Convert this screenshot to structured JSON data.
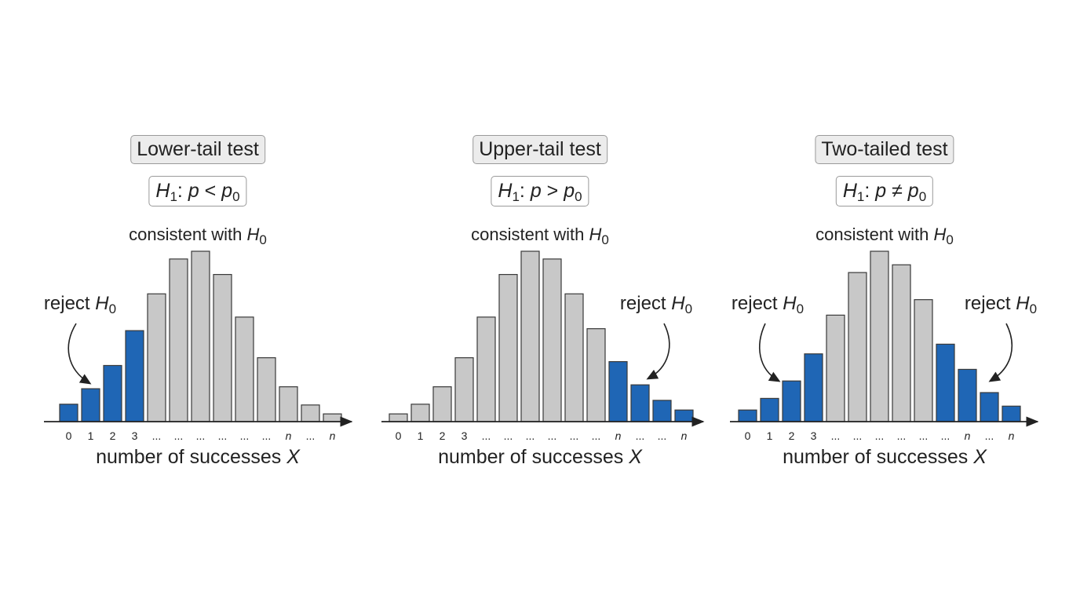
{
  "colors": {
    "reject": "#1f66b5",
    "accept": "#c8c8c8",
    "bar_stroke": "#3a3a3a",
    "axis": "#222222"
  },
  "chart_data": [
    {
      "type": "bar",
      "title": "Lower-tail test",
      "hypothesis": {
        "lhs": "H",
        "lhs_sub": "1",
        "colon": ":",
        "var": "p",
        "op": "<",
        "rhs": "p",
        "rhs_sub": "0"
      },
      "annotation": {
        "text": "consistent with",
        "sym": "H",
        "sub": "0"
      },
      "reject_labels": [
        {
          "text": "reject",
          "sym": "H",
          "sub": "0"
        }
      ],
      "xlabel": {
        "text": "number of successes",
        "sym": "X"
      },
      "tick_labels": [
        "0",
        "1",
        "2",
        "3",
        "...",
        "...",
        "...",
        "...",
        "...",
        "...",
        "n",
        "...",
        "n"
      ],
      "values": [
        0.045,
        0.085,
        0.145,
        0.235,
        0.33,
        0.42,
        0.44,
        0.38,
        0.27,
        0.165,
        0.09,
        0.043,
        0.02
      ],
      "reject": [
        true,
        true,
        true,
        true,
        false,
        false,
        false,
        false,
        false,
        false,
        false,
        false,
        false
      ]
    },
    {
      "type": "bar",
      "title": "Upper-tail test",
      "hypothesis": {
        "lhs": "H",
        "lhs_sub": "1",
        "colon": ":",
        "var": "p",
        "op": ">",
        "rhs": "p",
        "rhs_sub": "0"
      },
      "annotation": {
        "text": "consistent with",
        "sym": "H",
        "sub": "0"
      },
      "reject_labels": [
        {
          "text": "reject",
          "sym": "H",
          "sub": "0"
        }
      ],
      "xlabel": {
        "text": "number of successes",
        "sym": "X"
      },
      "tick_labels": [
        "0",
        "1",
        "2",
        "3",
        "...",
        "...",
        "...",
        "...",
        "...",
        "...",
        "n",
        "...",
        "...",
        "n"
      ],
      "values": [
        0.02,
        0.045,
        0.09,
        0.165,
        0.27,
        0.38,
        0.44,
        0.42,
        0.33,
        0.24,
        0.155,
        0.095,
        0.055,
        0.03
      ],
      "reject": [
        false,
        false,
        false,
        false,
        false,
        false,
        false,
        false,
        false,
        false,
        true,
        true,
        true,
        true
      ]
    },
    {
      "type": "bar",
      "title": "Two-tailed test",
      "hypothesis": {
        "lhs": "H",
        "lhs_sub": "1",
        "colon": ":",
        "var": "p",
        "op": "≠",
        "rhs": "p",
        "rhs_sub": "0"
      },
      "annotation": {
        "text": "consistent with",
        "sym": "H",
        "sub": "0"
      },
      "reject_labels": [
        {
          "text": "reject",
          "sym": "H",
          "sub": "0"
        },
        {
          "text": "reject",
          "sym": "H",
          "sub": "0"
        }
      ],
      "xlabel": {
        "text": "number of successes",
        "sym": "X"
      },
      "tick_labels": [
        "0",
        "1",
        "2",
        "3",
        "...",
        "...",
        "...",
        "...",
        "...",
        "...",
        "n",
        "...",
        "n"
      ],
      "values": [
        0.03,
        0.06,
        0.105,
        0.175,
        0.275,
        0.385,
        0.44,
        0.405,
        0.315,
        0.2,
        0.135,
        0.075,
        0.04
      ],
      "reject": [
        true,
        true,
        true,
        true,
        false,
        false,
        false,
        false,
        false,
        true,
        true,
        true,
        true
      ]
    }
  ]
}
